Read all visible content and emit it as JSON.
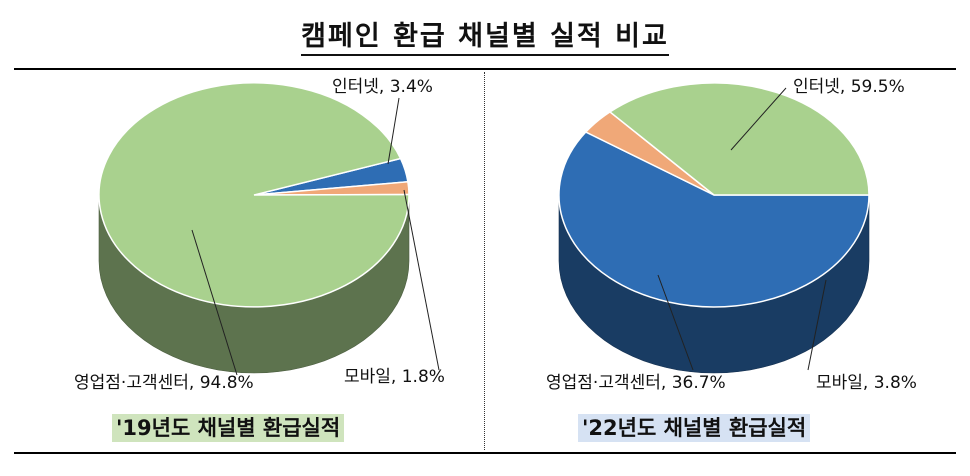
{
  "title": "캠페인 환급 채널별 실적 비교",
  "colors": {
    "internet": "#2e6db4",
    "mobile": "#f0a878",
    "office": "#a9d18e",
    "caption_left_bg": "#cfe4bd",
    "caption_right_bg": "#d6e2f3"
  },
  "chart_data": [
    {
      "type": "pie",
      "title": "'19년도 채널별 환급실적",
      "slices": [
        {
          "label": "인터넷",
          "value": 3.4,
          "display": "인터넷, 3.4%",
          "color": "#2e6db4"
        },
        {
          "label": "모바일",
          "value": 1.8,
          "display": "모바일, 1.8%",
          "color": "#f0a878"
        },
        {
          "label": "영업점·고객센터",
          "value": 94.8,
          "display": "영업점·고객센터, 94.8%",
          "color": "#a9d18e"
        }
      ],
      "style": "3d"
    },
    {
      "type": "pie",
      "title": "'22년도 채널별 환급실적",
      "slices": [
        {
          "label": "인터넷",
          "value": 59.5,
          "display": "인터넷, 59.5%",
          "color": "#2e6db4"
        },
        {
          "label": "모바일",
          "value": 3.8,
          "display": "모바일, 3.8%",
          "color": "#f0a878"
        },
        {
          "label": "영업점·고객센터",
          "value": 36.7,
          "display": "영업점·고객센터, 36.7%",
          "color": "#a9d18e"
        }
      ],
      "style": "3d"
    }
  ]
}
